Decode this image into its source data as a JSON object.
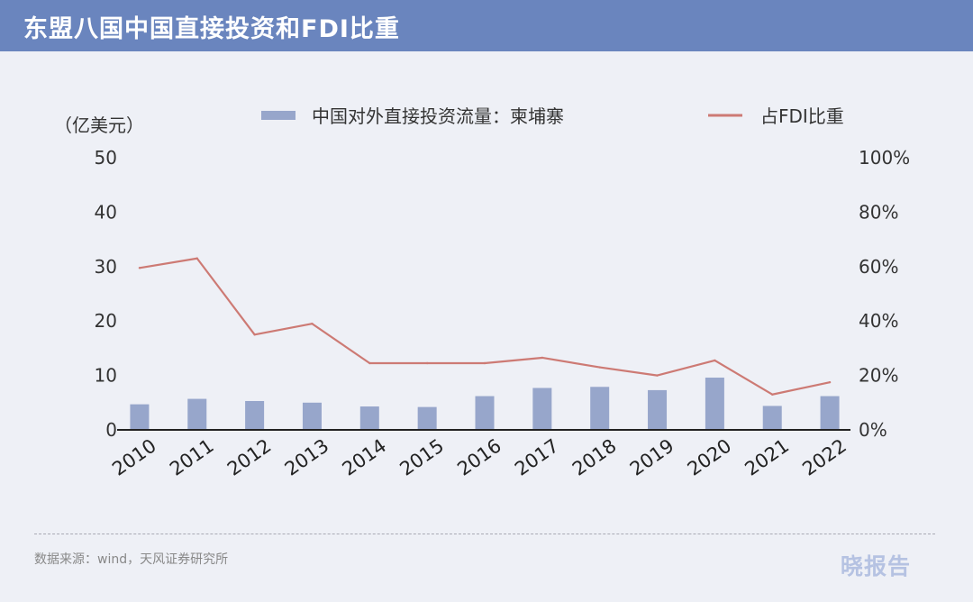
{
  "header": {
    "title": "东盟八国中国直接投资和FDI比重"
  },
  "chart_data": {
    "type": "bar",
    "title": "东盟八国中国直接投资和FDI比重",
    "unit_label": "（亿美元）",
    "categories": [
      "2010",
      "2011",
      "2012",
      "2013",
      "2014",
      "2015",
      "2016",
      "2017",
      "2018",
      "2019",
      "2020",
      "2021",
      "2022"
    ],
    "series": [
      {
        "name": "中国对外直接投资流量：柬埔寨",
        "type": "bar",
        "axis": "left",
        "color": "#97a6cb",
        "values": [
          4.7,
          5.7,
          5.3,
          5.0,
          4.3,
          4.2,
          6.2,
          7.7,
          7.9,
          7.3,
          9.6,
          4.4,
          6.2
        ]
      },
      {
        "name": "占FDI比重",
        "type": "line",
        "axis": "right",
        "color": "#cd7a74",
        "values": [
          59.5,
          63.0,
          35.0,
          39.0,
          24.5,
          24.5,
          24.5,
          26.5,
          23.0,
          20.0,
          25.5,
          13.0,
          17.5
        ]
      }
    ],
    "y_left": {
      "min": 0,
      "max": 50,
      "ticks": [
        "0",
        "10",
        "20",
        "30",
        "40",
        "50"
      ]
    },
    "y_right": {
      "min": 0,
      "max": 100,
      "ticks": [
        "0%",
        "20%",
        "40%",
        "60%",
        "80%",
        "100%"
      ]
    },
    "grid": false,
    "legend_position": "top"
  },
  "footer": {
    "source": "数据来源：wind，天风证券研究所",
    "watermark": "晓报告"
  }
}
